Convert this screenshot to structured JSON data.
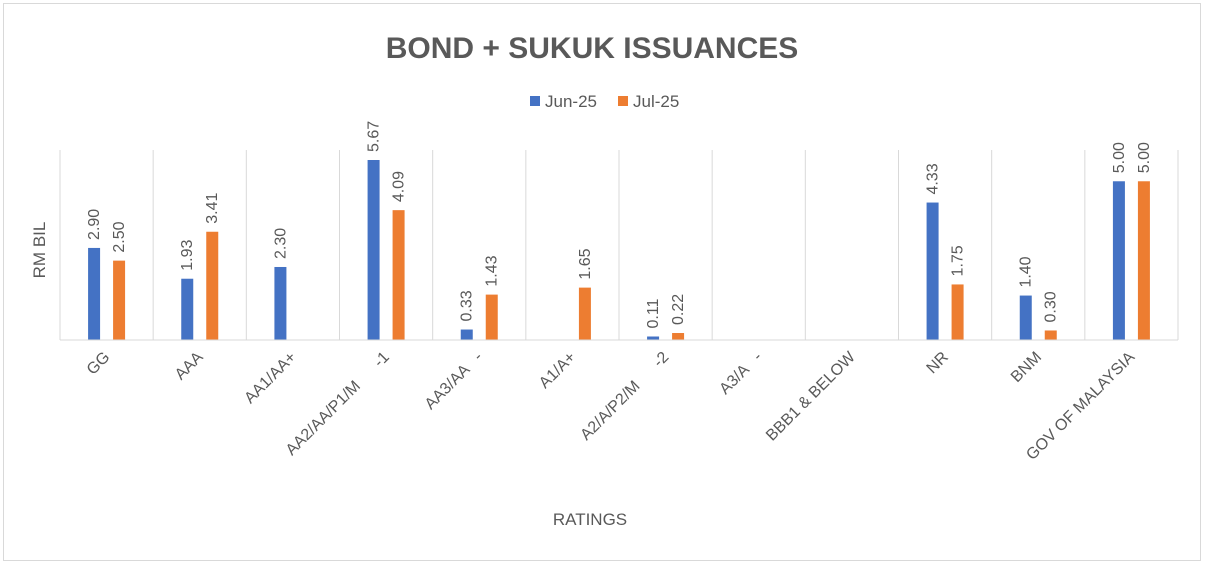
{
  "chart_data": {
    "type": "bar",
    "title": "BOND + SUKUK ISSUANCES",
    "xlabel": "RATINGS",
    "ylabel": "RM BIL",
    "ylim": [
      0,
      6
    ],
    "grid": "vertical category separators",
    "legend_position": "top",
    "categories": [
      "GG",
      "AAA",
      "AA1/AA+",
      "AA2/AA/P1/M      -1",
      "AA3/AA   -",
      "A1/A+",
      "A2/A/P2/M      -2",
      "A3/A   -",
      "BBB1 & BELOW",
      "NR",
      "BNM",
      "GOV OF MALAYSIA"
    ],
    "series": [
      {
        "name": "Jun-25",
        "color": "#4472c4",
        "values": [
          2.9,
          1.93,
          2.3,
          5.67,
          0.33,
          null,
          0.11,
          null,
          null,
          4.33,
          1.4,
          5.0
        ],
        "labels": [
          "2.90",
          "1.93",
          "2.30",
          "5.67",
          "0.33",
          "",
          "0.11",
          "",
          "",
          "4.33",
          "1.40",
          "5.00"
        ]
      },
      {
        "name": "Jul-25",
        "color": "#ed7d31",
        "values": [
          2.5,
          3.41,
          null,
          4.09,
          1.43,
          1.65,
          0.22,
          null,
          null,
          1.75,
          0.3,
          5.0
        ],
        "labels": [
          "2.50",
          "3.41",
          "",
          "4.09",
          "1.43",
          "1.65",
          "0.22",
          "",
          "",
          "1.75",
          "0.30",
          "5.00"
        ]
      }
    ]
  }
}
